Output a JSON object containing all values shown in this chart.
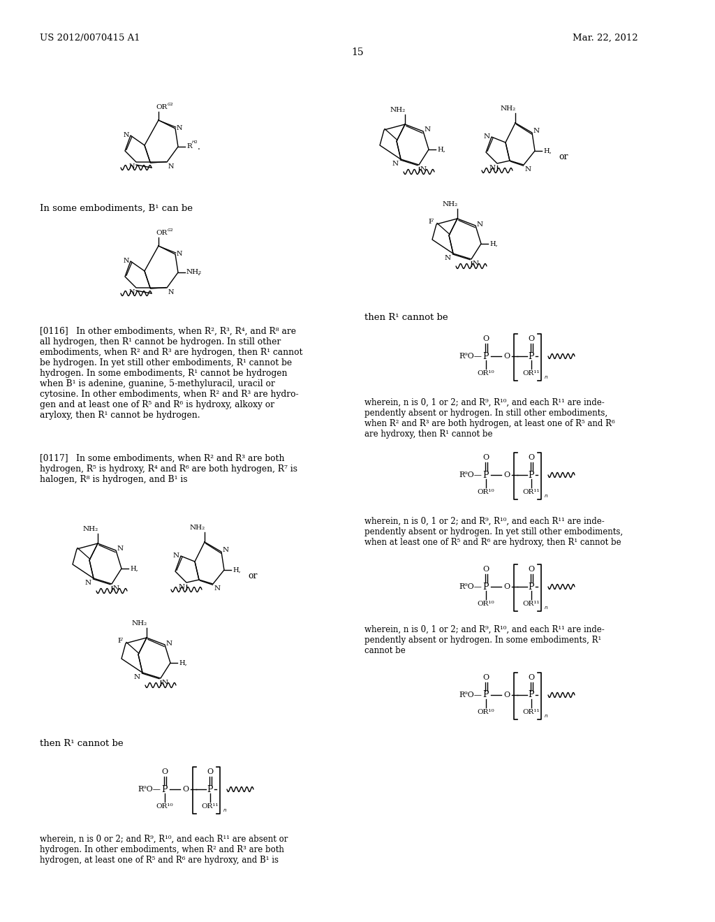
{
  "background_color": "#ffffff",
  "page_number": "15",
  "header_left": "US 2012/0070415 A1",
  "header_right": "Mar. 22, 2012",
  "text_in_some_emb": "In some embodiments, B¹ can be",
  "text_then_r1_right": "then R¹ cannot be",
  "text_then_r1_left": "then R¹ cannot be",
  "para0116": "[0116]   In other embodiments, when R², R³, R⁴, and R⁸ are\nall hydrogen, then R¹ cannot be hydrogen. In still other\nembodiments, when R² and R³ are hydrogen, then R¹ cannot\nbe hydrogen. In yet still other embodiments, R¹ cannot be\nhydrogen. In some embodiments, R¹ cannot be hydrogen\nwhen B¹ is adenine, guanine, 5-methyluracil, uracil or\ncytosine. In other embodiments, when R² and R³ are hydro-\ngen and at least one of R⁵ and R⁶ is hydroxy, alkoxy or\naryloxy, then R¹ cannot be hydrogen.",
  "para0117": "[0117]   In some embodiments, when R² and R³ are both\nhydrogen, R⁵ is hydroxy, R⁴ and R⁶ are both hydrogen, R⁷ is\nhalogen, R⁸ is hydrogen, and B¹ is",
  "wherein1": "wherein, n is 0, 1 or 2; and R⁹, R¹⁰, and each R¹¹ are inde-\npendently absent or hydrogen. In still other embodiments,\nwhen R² and R³ are both hydrogen, at least one of R⁵ and R⁶\nare hydroxy, then R¹ cannot be",
  "wherein2": "wherein, n is 0, 1 or 2; and R⁹, R¹⁰, and each R¹¹ are inde-\npendently absent or hydrogen. In yet still other embodiments,\nwhen at least one of R⁵ and R⁶ are hydroxy, then R¹ cannot be",
  "wherein3": "wherein, n is 0, 1 or 2; and R⁹, R¹⁰, and each R¹¹ are inde-\npendently absent or hydrogen. In some embodiments, R¹\ncannot be",
  "wherein4": "wherein, n is 0 or 2; and R⁹, R¹⁰, and each R¹¹ are absent or\nhydrogen. In other embodiments, when R² and R³ are both\nhydrogen, at least one of R⁵ and R⁶ are hydroxy, and B¹ is"
}
